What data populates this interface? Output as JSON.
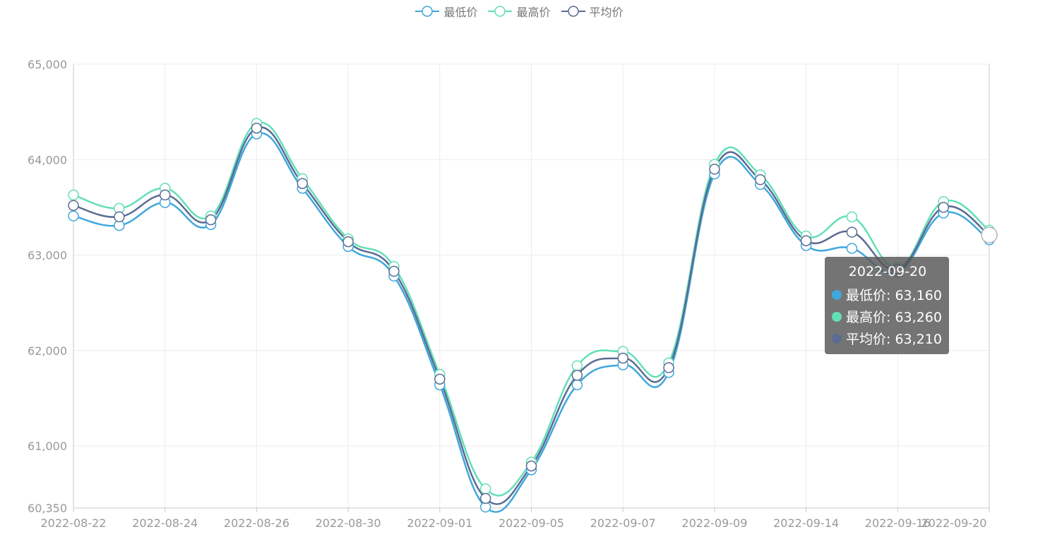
{
  "legend": [
    {
      "name": "最低价",
      "color": "#3fa7dc"
    },
    {
      "name": "最高价",
      "color": "#63dfb8"
    },
    {
      "name": "平均价",
      "color": "#5b6b93"
    }
  ],
  "tooltip": {
    "title": "2022-09-20",
    "rows": [
      {
        "label": "最低价: 63,160",
        "color": "#3fa7dc"
      },
      {
        "label": "最高价: 63,260",
        "color": "#63dfb8"
      },
      {
        "label": "平均价: 63,210",
        "color": "#5b6b93"
      }
    ]
  },
  "chart_data": {
    "type": "line",
    "smooth": true,
    "x": [
      "2022-08-22",
      "2022-08-23",
      "2022-08-24",
      "2022-08-25",
      "2022-08-26",
      "2022-08-29",
      "2022-08-30",
      "2022-08-31",
      "2022-09-01",
      "2022-09-02",
      "2022-09-05",
      "2022-09-06",
      "2022-09-07",
      "2022-09-08",
      "2022-09-09",
      "2022-09-13",
      "2022-09-14",
      "2022-09-15",
      "2022-09-16",
      "2022-09-19",
      "2022-09-20"
    ],
    "xticklabels": [
      "2022-08-22",
      "2022-08-24",
      "2022-08-26",
      "2022-08-30",
      "2022-09-01",
      "2022-09-05",
      "2022-09-07",
      "2022-09-09",
      "2022-09-14",
      "2022-09-16",
      "2022-09-20"
    ],
    "yticks": [
      60350,
      61000,
      62000,
      63000,
      64000,
      65000
    ],
    "yticklabels": [
      "60,350",
      "61,000",
      "62,000",
      "63,000",
      "64,000",
      "65,000"
    ],
    "ylim": [
      60350,
      65000
    ],
    "grid": true,
    "legend_position": "top-center",
    "series": [
      {
        "name": "最低价",
        "color": "#3fa7dc",
        "values": [
          63410,
          63310,
          63550,
          63320,
          64270,
          63700,
          63090,
          62780,
          61640,
          60360,
          60750,
          61640,
          61850,
          61770,
          63850,
          63740,
          63100,
          63070,
          62820,
          63440,
          63160
        ]
      },
      {
        "name": "最高价",
        "color": "#63dfb8",
        "values": [
          63630,
          63490,
          63700,
          63410,
          64380,
          63800,
          63170,
          62880,
          61750,
          60550,
          60830,
          61840,
          61990,
          61870,
          63950,
          63840,
          63200,
          63400,
          62870,
          63560,
          63260
        ]
      },
      {
        "name": "平均价",
        "color": "#5b6b93",
        "values": [
          63520,
          63400,
          63630,
          63370,
          64330,
          63750,
          63140,
          62830,
          61700,
          60450,
          60790,
          61740,
          61920,
          61820,
          63900,
          63790,
          63150,
          63240,
          62850,
          63500,
          63210
        ]
      }
    ]
  }
}
